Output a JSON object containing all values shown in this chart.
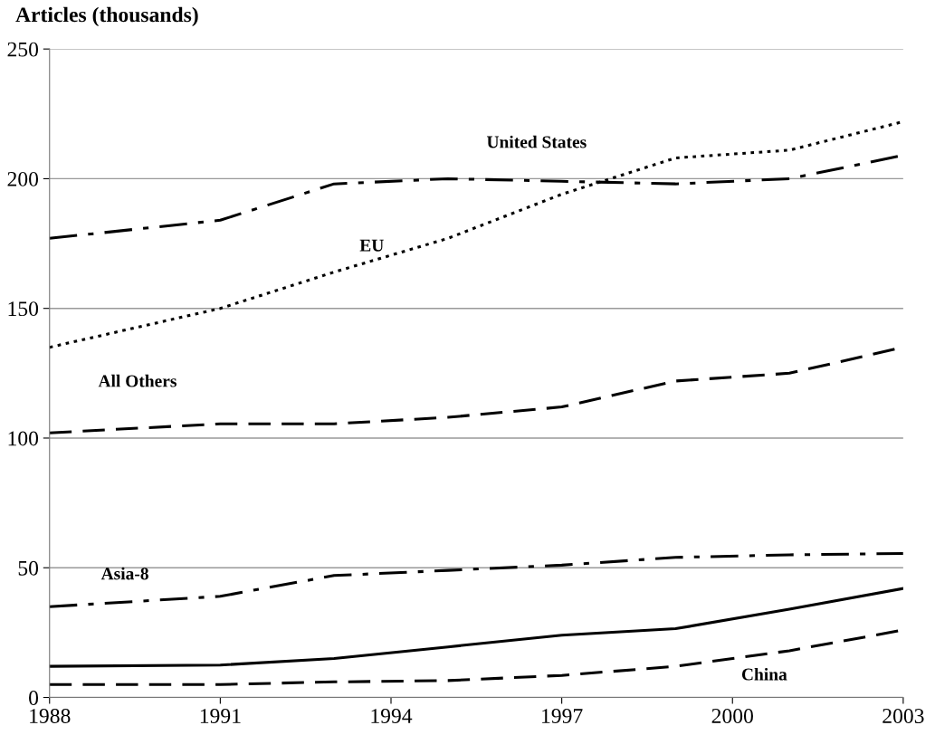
{
  "chart_data": {
    "type": "line",
    "ylabel": "Articles (thousands)",
    "x": [
      1988,
      1991,
      1993,
      1995,
      1997,
      1999,
      2001,
      2003
    ],
    "series": [
      {
        "name": "United States",
        "color": "#000000",
        "line_style": "dashdot",
        "values": [
          177,
          184,
          198,
          200,
          199,
          198,
          200,
          209
        ]
      },
      {
        "name": "EU",
        "color": "#000000",
        "line_style": "dotted",
        "values": [
          135,
          150,
          164,
          177,
          194,
          208,
          211,
          222
        ]
      },
      {
        "name": "All Others",
        "color": "#000000",
        "line_style": "dashed",
        "values": [
          102,
          105.5,
          105.5,
          108,
          112,
          122,
          125,
          135
        ]
      },
      {
        "name": "Asia-8",
        "color": "#000000",
        "line_style": "dashdot",
        "values": [
          35,
          39,
          47,
          49,
          51,
          54,
          55,
          55.5
        ]
      },
      {
        "color": "#000000",
        "line_style": "solid",
        "values": [
          12,
          12.5,
          15,
          19.5,
          24,
          26.5,
          34,
          42
        ]
      },
      {
        "name": "China",
        "color": "#000000",
        "line_style": "dashed",
        "values": [
          5,
          5,
          6,
          6.5,
          8.5,
          12,
          18,
          26
        ]
      }
    ],
    "xlim": [
      1988,
      2003
    ],
    "xticks": [
      1988,
      1991,
      1994,
      1997,
      2000,
      2003
    ],
    "ylim": [
      0,
      250
    ],
    "yticks": [
      0,
      50,
      100,
      150,
      200,
      250
    ],
    "grid": "y",
    "legend": false,
    "marker": "none"
  }
}
